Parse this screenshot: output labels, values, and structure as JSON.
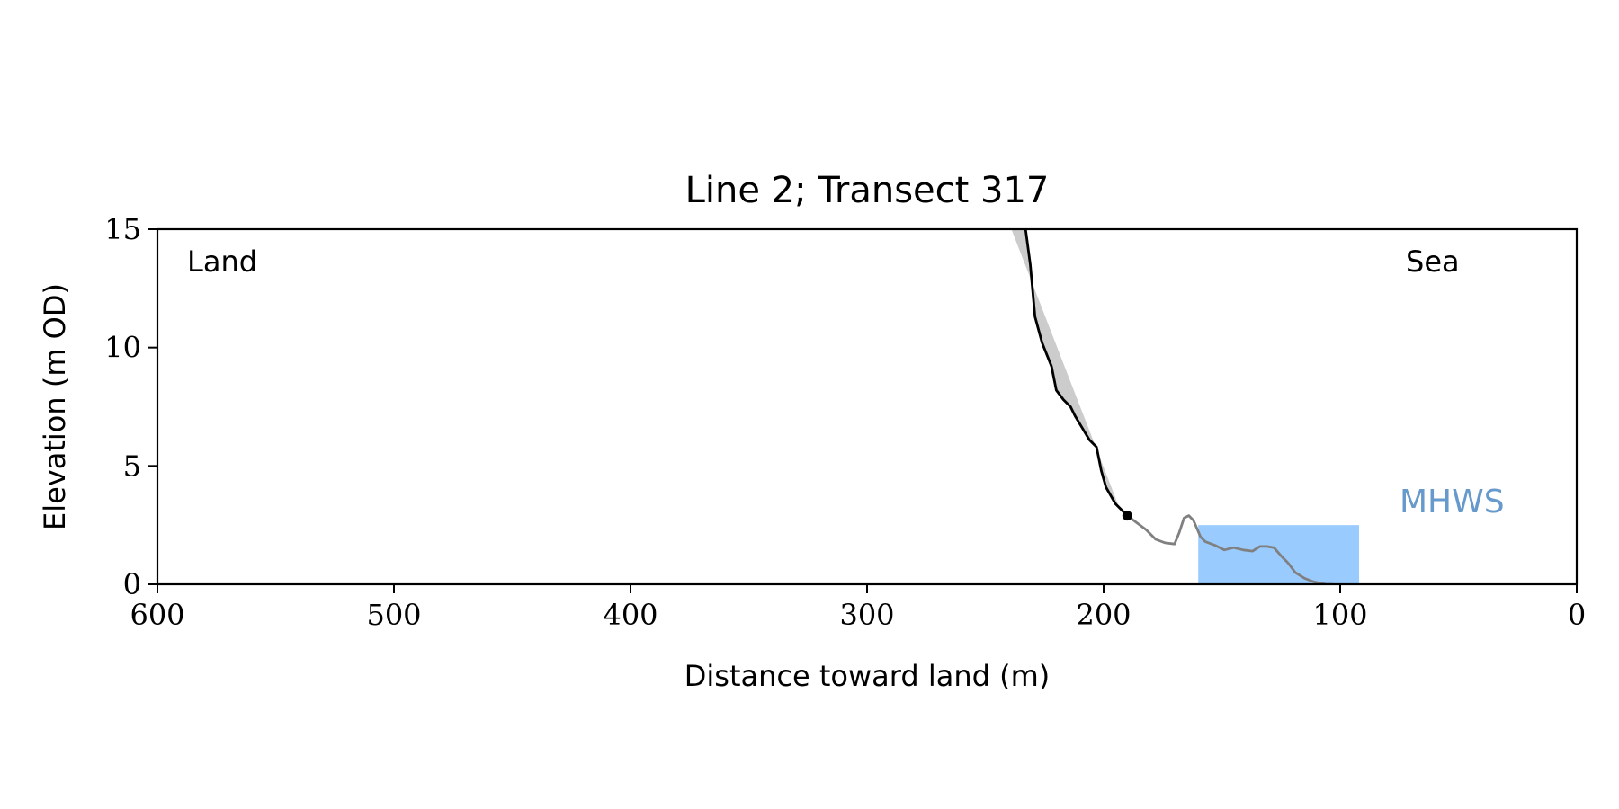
{
  "chart_data": {
    "type": "line",
    "title": "Line 2; Transect 317",
    "xlabel": "Distance toward land (m)",
    "ylabel": "Elevation (m OD)",
    "xlim": [
      600,
      0
    ],
    "ylim": [
      0,
      15
    ],
    "x_ticks": [
      600,
      500,
      400,
      300,
      200,
      100,
      0
    ],
    "y_ticks": [
      0,
      5,
      10,
      15
    ],
    "x_tick_labels": [
      "600",
      "500",
      "400",
      "300",
      "200",
      "100",
      "0"
    ],
    "y_tick_labels": [
      "0",
      "5",
      "10",
      "15"
    ],
    "grid": false,
    "annotations": {
      "land": "Land",
      "sea": "Sea",
      "mhws": "MHWS"
    },
    "colors": {
      "cliff_profile": "#000000",
      "beach_profile": "#808080",
      "fill": "#cccccc",
      "mhws_box": "#99cbff",
      "mhws_text": "#6699cc"
    },
    "series": [
      {
        "values": [
          [
            233,
            15.0
          ],
          [
            231,
            13.5
          ],
          [
            229,
            11.3
          ],
          [
            226,
            10.2
          ],
          [
            222,
            9.2
          ],
          [
            220,
            8.2
          ],
          [
            217,
            7.8
          ],
          [
            214,
            7.5
          ],
          [
            212,
            7.1
          ],
          [
            209,
            6.6
          ],
          [
            206,
            6.1
          ],
          [
            203,
            5.8
          ],
          [
            201,
            4.8
          ],
          [
            199,
            4.1
          ],
          [
            195,
            3.4
          ],
          [
            190,
            2.9
          ]
        ]
      },
      {
        "values": [
          [
            190,
            2.9
          ],
          [
            186,
            2.6
          ],
          [
            182,
            2.3
          ],
          [
            178,
            1.9
          ],
          [
            174,
            1.75
          ],
          [
            170,
            1.7
          ],
          [
            168,
            2.2
          ],
          [
            166,
            2.8
          ],
          [
            164,
            2.9
          ],
          [
            162,
            2.7
          ],
          [
            159,
            2.0
          ],
          [
            157,
            1.8
          ],
          [
            153,
            1.65
          ],
          [
            149,
            1.45
          ],
          [
            145,
            1.55
          ],
          [
            141,
            1.45
          ],
          [
            137,
            1.4
          ],
          [
            134,
            1.6
          ],
          [
            131,
            1.6
          ],
          [
            128,
            1.55
          ],
          [
            125,
            1.2
          ],
          [
            122,
            0.9
          ],
          [
            119,
            0.5
          ],
          [
            115,
            0.25
          ],
          [
            111,
            0.1
          ],
          [
            106,
            0.0
          ],
          [
            103,
            0.0
          ]
        ]
      }
    ],
    "fill_region": {
      "upper": [
        [
          239,
          15.0
        ],
        [
          194,
          3.4
        ]
      ],
      "lower": [
        [
          233,
          15.0
        ],
        [
          231,
          13.5
        ],
        [
          229,
          11.3
        ],
        [
          226,
          10.2
        ],
        [
          222,
          9.2
        ],
        [
          220,
          8.2
        ],
        [
          217,
          7.8
        ],
        [
          214,
          7.5
        ],
        [
          212,
          7.1
        ],
        [
          209,
          6.6
        ],
        [
          206,
          6.1
        ],
        [
          203,
          5.8
        ],
        [
          201,
          4.8
        ],
        [
          199,
          4.1
        ],
        [
          195,
          3.4
        ]
      ]
    },
    "mhws_box": {
      "x_from": 160,
      "x_to": 92,
      "y_top": 2.5
    },
    "point": [
      190,
      2.9
    ]
  }
}
